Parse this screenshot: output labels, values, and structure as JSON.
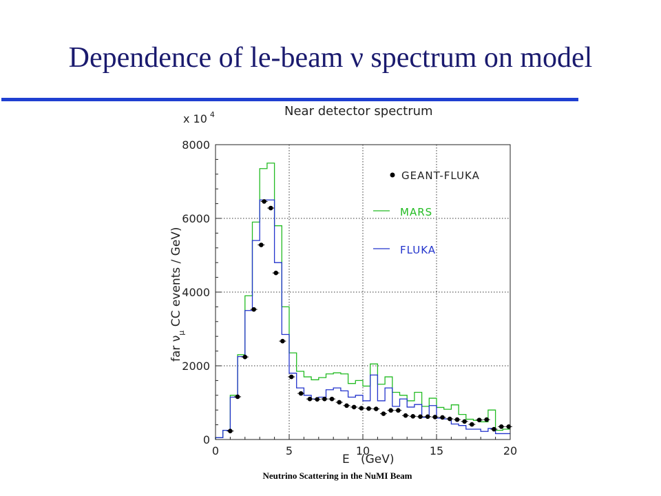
{
  "slide": {
    "title": "Dependence of le-beam ν spectrum on model",
    "footer": "Neutrino Scattering in the NuMI Beam",
    "accent_color": "#1f3fd1"
  },
  "chart_data": {
    "type": "line",
    "title": "Near detector spectrum",
    "multiplier_label": "x 10",
    "multiplier_exponent": "4",
    "xlabel": "E   (GeV)",
    "ylabel_parts": [
      "far ν",
      "μ",
      " CC events / GeV)"
    ],
    "xlim": [
      0,
      20
    ],
    "ylim": [
      0,
      8000
    ],
    "xticks": [
      0,
      5,
      10,
      15,
      20
    ],
    "yticks": [
      0,
      2000,
      4000,
      6000,
      8000
    ],
    "grid": "dotted",
    "legend_position": "top-right",
    "bin_edges": [
      0,
      0.5,
      1,
      1.5,
      2,
      2.5,
      3,
      3.5,
      4,
      4.5,
      5,
      5.5,
      6,
      6.5,
      7,
      7.5,
      8,
      8.5,
      9,
      9.5,
      10,
      10.5,
      11,
      11.5,
      12,
      12.5,
      13,
      13.5,
      14,
      14.5,
      15,
      15.5,
      16,
      16.5,
      17,
      17.5,
      18,
      18.5,
      19,
      19.5,
      20
    ],
    "series": [
      {
        "name": "MARS",
        "style": "histogram",
        "color": "#22bb22",
        "values": [
          50,
          250,
          1200,
          2300,
          3900,
          5900,
          7350,
          7500,
          5800,
          3600,
          2350,
          1850,
          1700,
          1620,
          1680,
          1780,
          1810,
          1780,
          1520,
          1600,
          1450,
          2050,
          1500,
          1700,
          1280,
          1200,
          1050,
          1280,
          900,
          1120,
          870,
          820,
          940,
          680,
          550,
          520,
          480,
          800,
          250,
          280
        ]
      },
      {
        "name": "FLUKA",
        "style": "histogram",
        "color": "#2233cc",
        "values": [
          50,
          250,
          1150,
          2250,
          3500,
          5400,
          6500,
          6500,
          4800,
          2850,
          1800,
          1400,
          1200,
          1100,
          1150,
          1350,
          1400,
          1320,
          1150,
          1200,
          1050,
          1750,
          1050,
          1400,
          900,
          1100,
          880,
          950,
          600,
          920,
          580,
          560,
          420,
          380,
          280,
          280,
          220,
          300,
          160,
          160
        ]
      },
      {
        "name": "GEANT-FLUKA",
        "style": "points",
        "color": "#000000",
        "x": [
          1.0,
          1.5,
          2.0,
          2.6,
          3.1,
          3.3,
          3.75,
          4.1,
          4.55,
          5.15,
          5.8,
          6.4,
          6.9,
          7.4,
          7.9,
          8.4,
          8.9,
          9.4,
          9.9,
          10.4,
          10.9,
          11.4,
          11.9,
          12.4,
          12.9,
          13.4,
          13.9,
          14.4,
          14.9,
          15.4,
          15.9,
          16.4,
          16.9,
          17.4,
          17.9,
          18.4,
          18.9,
          19.4,
          19.9
        ],
        "y": [
          230,
          1160,
          2240,
          3530,
          5280,
          6460,
          6280,
          4520,
          2670,
          1700,
          1250,
          1100,
          1090,
          1100,
          1100,
          1010,
          920,
          880,
          850,
          840,
          830,
          700,
          790,
          790,
          650,
          630,
          620,
          620,
          610,
          600,
          560,
          540,
          490,
          410,
          530,
          540,
          280,
          350,
          350
        ]
      }
    ]
  }
}
